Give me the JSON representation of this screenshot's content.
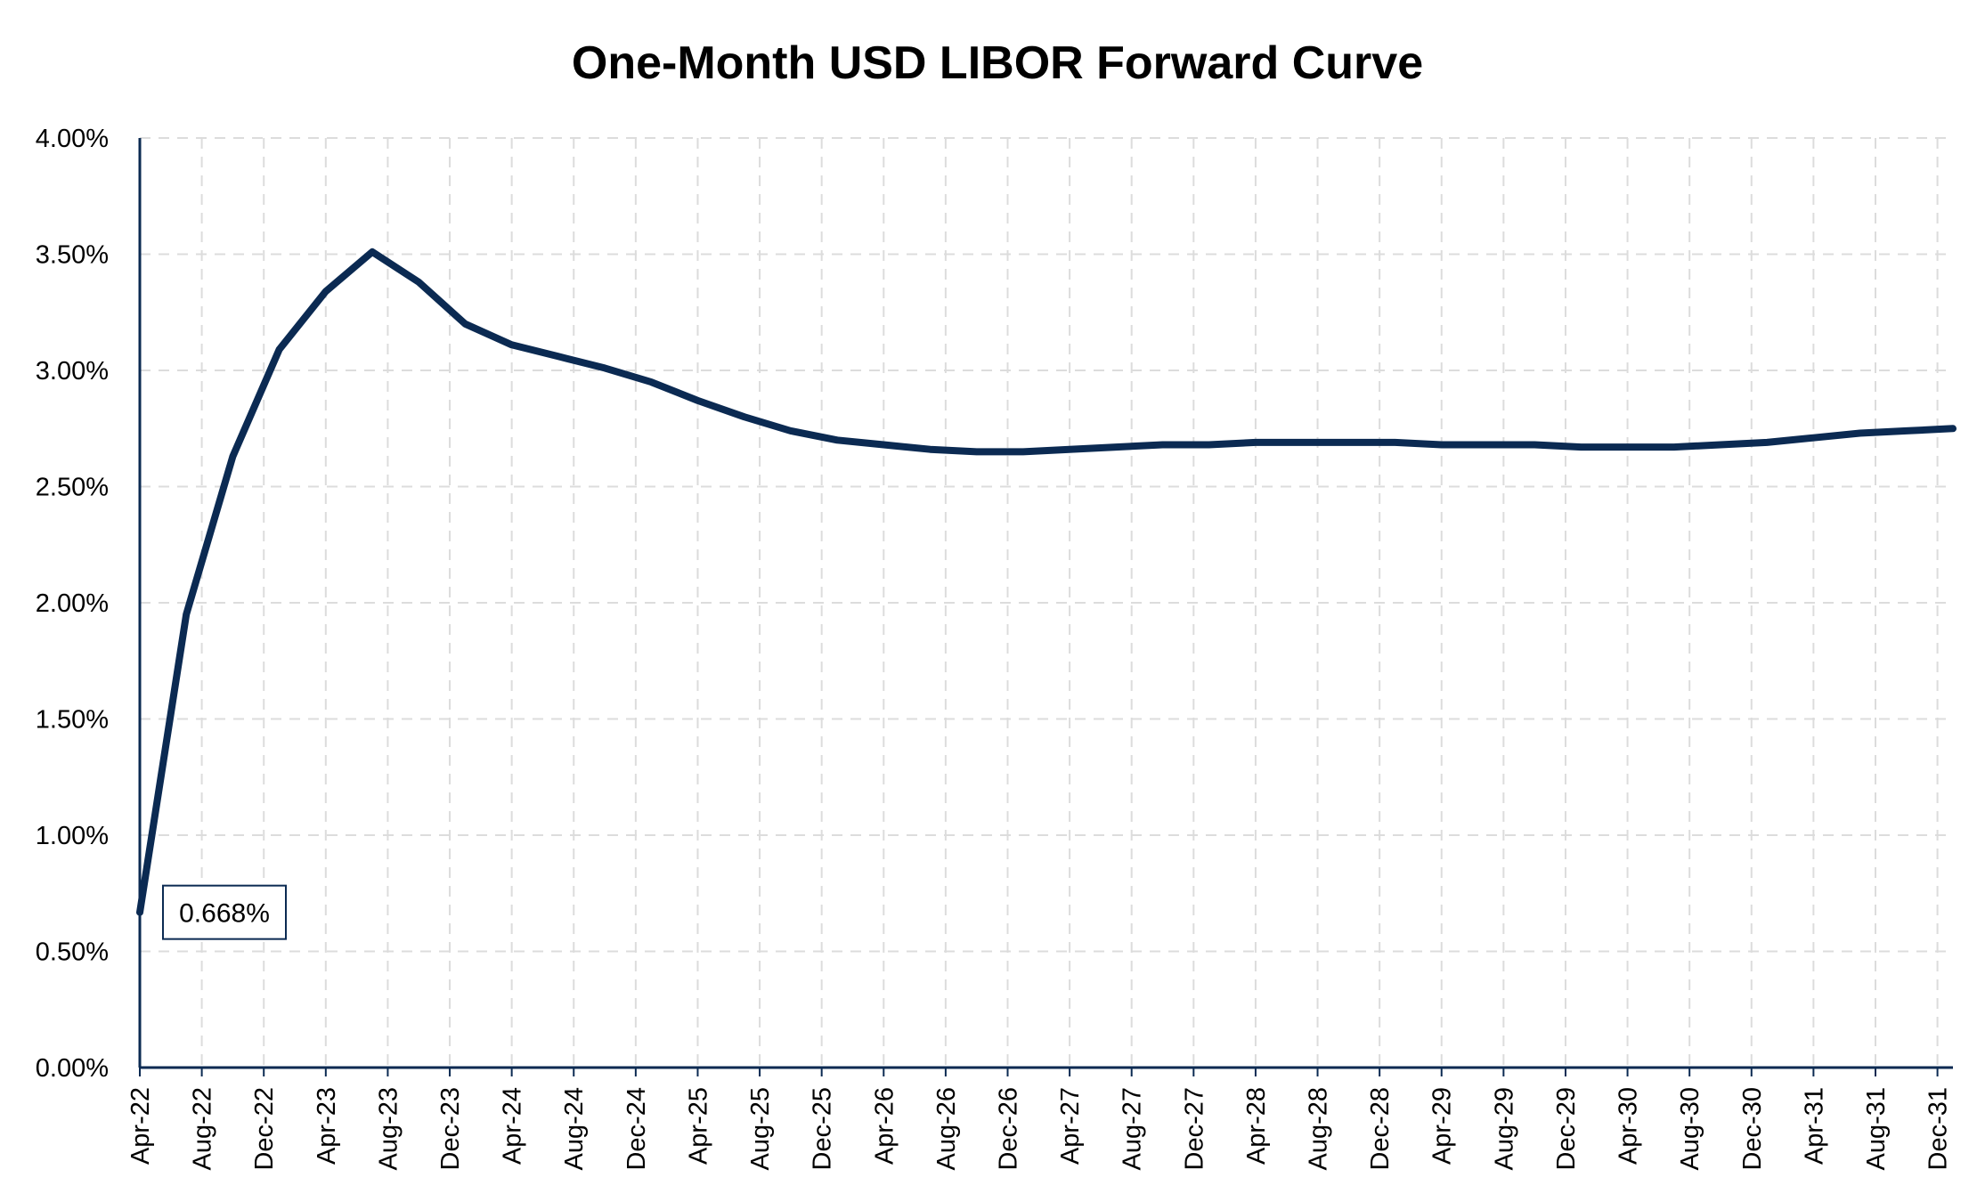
{
  "chart_data": {
    "type": "line",
    "title": "One-Month USD LIBOR Forward Curve",
    "xlabel": "",
    "ylabel": "",
    "ylim": [
      0,
      0.04
    ],
    "y_ticks": [
      {
        "value": 0.0,
        "label": "0.00%"
      },
      {
        "value": 0.005,
        "label": "0.50%"
      },
      {
        "value": 0.01,
        "label": "1.00%"
      },
      {
        "value": 0.015,
        "label": "1.50%"
      },
      {
        "value": 0.02,
        "label": "2.00%"
      },
      {
        "value": 0.025,
        "label": "2.50%"
      },
      {
        "value": 0.03,
        "label": "3.00%"
      },
      {
        "value": 0.035,
        "label": "3.50%"
      },
      {
        "value": 0.04,
        "label": "4.00%"
      }
    ],
    "x_tick_labels": [
      "Apr-22",
      "Aug-22",
      "Dec-22",
      "Apr-23",
      "Aug-23",
      "Dec-23",
      "Apr-24",
      "Aug-24",
      "Dec-24",
      "Apr-25",
      "Aug-25",
      "Dec-25",
      "Apr-26",
      "Aug-26",
      "Dec-26",
      "Apr-27",
      "Aug-27",
      "Dec-27",
      "Apr-28",
      "Aug-28",
      "Dec-28",
      "Apr-29",
      "Aug-29",
      "Dec-29",
      "Apr-30",
      "Aug-30",
      "Dec-30",
      "Apr-31",
      "Aug-31",
      "Dec-31"
    ],
    "x_domain": [
      "2022-04",
      "2032-01"
    ],
    "grid": true,
    "legend": "none",
    "series": [
      {
        "color": "#0b2a52",
        "points": [
          [
            "2022-04",
            0.00668
          ],
          [
            "2022-07",
            0.0195
          ],
          [
            "2022-10",
            0.0263
          ],
          [
            "2023-01",
            0.0309
          ],
          [
            "2023-04",
            0.0334
          ],
          [
            "2023-07",
            0.0351
          ],
          [
            "2023-10",
            0.0338
          ],
          [
            "2024-01",
            0.032
          ],
          [
            "2024-04",
            0.0311
          ],
          [
            "2024-07",
            0.0306
          ],
          [
            "2024-10",
            0.0301
          ],
          [
            "2025-01",
            0.0295
          ],
          [
            "2025-04",
            0.0287
          ],
          [
            "2025-07",
            0.028
          ],
          [
            "2025-10",
            0.0274
          ],
          [
            "2026-01",
            0.027
          ],
          [
            "2026-04",
            0.0268
          ],
          [
            "2026-07",
            0.0266
          ],
          [
            "2026-10",
            0.0265
          ],
          [
            "2027-01",
            0.0265
          ],
          [
            "2027-04",
            0.0266
          ],
          [
            "2027-07",
            0.0267
          ],
          [
            "2027-10",
            0.0268
          ],
          [
            "2028-01",
            0.0268
          ],
          [
            "2028-04",
            0.0269
          ],
          [
            "2028-07",
            0.0269
          ],
          [
            "2028-10",
            0.0269
          ],
          [
            "2029-01",
            0.0269
          ],
          [
            "2029-04",
            0.0268
          ],
          [
            "2029-07",
            0.0268
          ],
          [
            "2029-10",
            0.0268
          ],
          [
            "2030-01",
            0.0267
          ],
          [
            "2030-04",
            0.0267
          ],
          [
            "2030-07",
            0.0267
          ],
          [
            "2030-10",
            0.0268
          ],
          [
            "2031-01",
            0.0269
          ],
          [
            "2031-04",
            0.0271
          ],
          [
            "2031-07",
            0.0273
          ],
          [
            "2031-10",
            0.0274
          ],
          [
            "2032-01",
            0.0275
          ]
        ]
      }
    ],
    "annotations": [
      {
        "text": "0.668%",
        "x": "2022-04",
        "y": 0.00668
      }
    ]
  }
}
